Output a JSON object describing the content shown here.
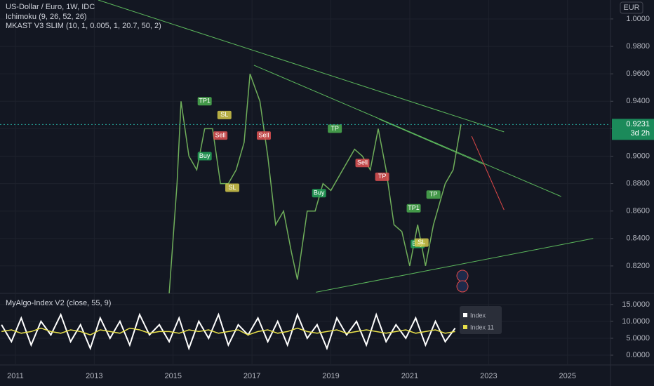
{
  "chart_data": [
    {
      "type": "line",
      "title": "US-Dollar / Euro, 1W, IDC",
      "indicators": [
        "Ichimoku (9, 26, 52, 26)",
        "MKAST V3 SLIM (10, 1, 0.005, 1, 20.7, 50, 2)"
      ],
      "currency": "EUR",
      "x": [
        2014.9,
        2015.1,
        2015.2,
        2015.4,
        2015.6,
        2015.8,
        2016.0,
        2016.2,
        2016.4,
        2016.6,
        2016.8,
        2016.95,
        2017.2,
        2017.4,
        2017.6,
        2017.8,
        2018.0,
        2018.15,
        2018.4,
        2018.6,
        2018.8,
        2019.0,
        2019.3,
        2019.6,
        2019.8,
        2020.0,
        2020.2,
        2020.4,
        2020.6,
        2020.8,
        2021.0,
        2021.2,
        2021.4,
        2021.6,
        2021.9,
        2022.1,
        2022.3
      ],
      "values": [
        0.8,
        0.88,
        0.94,
        0.9,
        0.89,
        0.92,
        0.92,
        0.88,
        0.88,
        0.89,
        0.91,
        0.96,
        0.94,
        0.9,
        0.85,
        0.86,
        0.83,
        0.81,
        0.86,
        0.86,
        0.88,
        0.875,
        0.89,
        0.905,
        0.9,
        0.89,
        0.92,
        0.89,
        0.85,
        0.845,
        0.82,
        0.85,
        0.82,
        0.85,
        0.88,
        0.89,
        0.9231
      ],
      "color": "#6fae5a",
      "xlim": [
        2010.61,
        2026.09
      ],
      "ylim": [
        0.8,
        1.0138
      ],
      "xticks": [
        2011,
        2013,
        2015,
        2017,
        2019,
        2021,
        2023,
        2025
      ],
      "yticks": [
        {
          "value": 0.82,
          "label": "0.8200"
        },
        {
          "value": 0.84,
          "label": "0.8400"
        },
        {
          "value": 0.86,
          "label": "0.8600"
        },
        {
          "value": 0.88,
          "label": "0.8800"
        },
        {
          "value": 0.9,
          "label": "0.9000"
        },
        {
          "value": 0.92,
          "label": "0.9200"
        },
        {
          "value": 0.94,
          "label": "0.9400"
        },
        {
          "value": 0.96,
          "label": "0.9600"
        },
        {
          "value": 0.98,
          "label": "0.9800"
        },
        {
          "value": 1.0,
          "label": "1.0000"
        }
      ],
      "grid": true,
      "price_label": {
        "value": 0.9231,
        "label": "0.9231"
      },
      "countdown": "3d 2h",
      "annotations": [
        {
          "text": "TP1",
          "x": 2015.8,
          "y": 0.94,
          "color": "#4caf50"
        },
        {
          "text": "Buy",
          "x": 2015.8,
          "y": 0.9,
          "color": "#26a65b"
        },
        {
          "text": "Sell",
          "x": 2016.2,
          "y": 0.915,
          "color": "#e05252"
        },
        {
          "text": "SL",
          "x": 2016.3,
          "y": 0.93,
          "color": "#d4c84a"
        },
        {
          "text": "SL",
          "x": 2016.5,
          "y": 0.877,
          "color": "#d4c84a"
        },
        {
          "text": "Sell",
          "x": 2017.3,
          "y": 0.915,
          "color": "#e05252"
        },
        {
          "text": "Buy",
          "x": 2018.7,
          "y": 0.873,
          "color": "#26a65b"
        },
        {
          "text": "TP",
          "x": 2019.1,
          "y": 0.92,
          "color": "#4caf50"
        },
        {
          "text": "Sell",
          "x": 2019.8,
          "y": 0.895,
          "color": "#e05252"
        },
        {
          "text": "TP",
          "x": 2020.3,
          "y": 0.885,
          "color": "#e05252"
        },
        {
          "text": "TP1",
          "x": 2021.1,
          "y": 0.862,
          "color": "#4caf50"
        },
        {
          "text": "Buy",
          "x": 2021.2,
          "y": 0.836,
          "color": "#26a65b"
        },
        {
          "text": "SL",
          "x": 2021.3,
          "y": 0.837,
          "color": "#d4c84a"
        },
        {
          "text": "TP",
          "x": 2021.6,
          "y": 0.872,
          "color": "#4caf50"
        }
      ],
      "trend_lines": [
        {
          "x": [
            2013.1,
            2023.39
          ],
          "y": [
            1.0138,
            0.9177
          ],
          "color": "#5cb85c"
        },
        {
          "x": [
            2017.05,
            2024.84
          ],
          "y": [
            0.9663,
            0.8706
          ],
          "color": "#5cb85c"
        },
        {
          "x": [
            2020.22,
            2022.89
          ],
          "y": [
            0.927,
            0.8938
          ],
          "color": "#5cb85c"
        },
        {
          "x": [
            2018.62,
            2025.65
          ],
          "y": [
            0.8008,
            0.84
          ],
          "color": "#5cb85c"
        },
        {
          "x": [
            2022.57,
            2023.39
          ],
          "y": [
            0.9145,
            0.8608
          ],
          "color": "#e04848"
        }
      ]
    },
    {
      "type": "line",
      "title": "MyAlgo-Index V2 (close, 55, 9)",
      "x": [
        2010.65,
        2010.9,
        2011.15,
        2011.4,
        2011.65,
        2011.9,
        2012.15,
        2012.4,
        2012.65,
        2012.9,
        2013.15,
        2013.4,
        2013.65,
        2013.9,
        2014.15,
        2014.4,
        2014.65,
        2014.9,
        2015.15,
        2015.4,
        2015.65,
        2015.9,
        2016.15,
        2016.4,
        2016.65,
        2016.9,
        2017.15,
        2017.4,
        2017.65,
        2017.9,
        2018.15,
        2018.4,
        2018.65,
        2018.9,
        2019.15,
        2019.4,
        2019.65,
        2019.9,
        2020.15,
        2020.4,
        2020.65,
        2020.9,
        2021.15,
        2021.4,
        2021.65,
        2021.9,
        2022.15
      ],
      "series": [
        {
          "name": "Index",
          "color": "#ffffff",
          "values": [
            9,
            4,
            11,
            3,
            10,
            6,
            12,
            4,
            9,
            2,
            11,
            5,
            10,
            3,
            12,
            6,
            9,
            4,
            11,
            2,
            10,
            5,
            12,
            3,
            9,
            6,
            11,
            4,
            10,
            3,
            12,
            5,
            9,
            2,
            11,
            6,
            10,
            3,
            12,
            4,
            9,
            5,
            11,
            3,
            10,
            4,
            8
          ]
        },
        {
          "name": "Index 11",
          "color": "#e8e04a",
          "values": [
            7,
            7.5,
            6.5,
            7,
            8,
            7,
            6.5,
            7.5,
            7,
            6,
            7.5,
            7,
            6.5,
            8,
            7.5,
            6.5,
            7,
            7,
            6.5,
            7.5,
            7,
            7.5,
            6.5,
            7,
            7.5,
            6,
            7,
            7.5,
            6.5,
            7,
            8,
            7,
            6.5,
            7,
            7.5,
            6.5,
            7,
            7.5,
            7,
            6.5,
            7,
            7.5,
            6.5,
            7,
            7.5,
            6.5,
            7
          ]
        }
      ],
      "xlim": [
        2010.61,
        2026.09
      ],
      "ylim": [
        -2.9,
        18.3
      ],
      "yticks": [
        {
          "value": 0,
          "label": "0.0000"
        },
        {
          "value": 5,
          "label": "5.0000"
        },
        {
          "value": 10,
          "label": "10.0000"
        },
        {
          "value": 15,
          "label": "15.0000"
        }
      ],
      "grid": true
    }
  ]
}
